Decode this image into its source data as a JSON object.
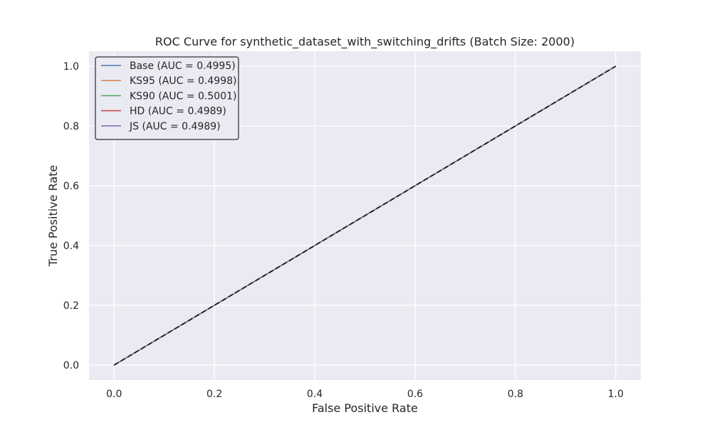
{
  "chart_data": {
    "type": "line",
    "title": "ROC Curve for synthetic_dataset_with_switching_drifts (Batch Size: 2000)",
    "xlabel": "False Positive Rate",
    "ylabel": "True Positive Rate",
    "xlim": [
      -0.05,
      1.05
    ],
    "ylim": [
      -0.05,
      1.05
    ],
    "xticks": [
      0.0,
      0.2,
      0.4,
      0.6,
      0.8,
      1.0
    ],
    "yticks": [
      0.0,
      0.2,
      0.4,
      0.6,
      0.8,
      1.0
    ],
    "xtick_labels": [
      "0.0",
      "0.2",
      "0.4",
      "0.6",
      "0.8",
      "1.0"
    ],
    "ytick_labels": [
      "0.0",
      "0.2",
      "0.4",
      "0.6",
      "0.8",
      "1.0"
    ],
    "grid": true,
    "legend_position": "upper left",
    "series": [
      {
        "name": "Base (AUC = 0.4995)",
        "color": "#4c72b0",
        "x": [
          0.0,
          1.0
        ],
        "y": [
          0.0,
          1.0
        ]
      },
      {
        "name": "KS95 (AUC = 0.4998)",
        "color": "#dd8452",
        "x": [
          0.0,
          1.0
        ],
        "y": [
          0.0,
          1.0
        ]
      },
      {
        "name": "KS90 (AUC = 0.5001)",
        "color": "#55a868",
        "x": [
          0.0,
          1.0
        ],
        "y": [
          0.0,
          1.0
        ]
      },
      {
        "name": "HD (AUC = 0.4989)",
        "color": "#c44e52",
        "x": [
          0.0,
          1.0
        ],
        "y": [
          0.0,
          1.0
        ]
      },
      {
        "name": "JS (AUC = 0.4989)",
        "color": "#8172b3",
        "x": [
          0.0,
          1.0
        ],
        "y": [
          0.0,
          1.0
        ]
      }
    ],
    "reference_line": {
      "style": "dashed",
      "color": "#1a1a1a",
      "x": [
        0.0,
        1.0
      ],
      "y": [
        0.0,
        1.0
      ]
    }
  }
}
